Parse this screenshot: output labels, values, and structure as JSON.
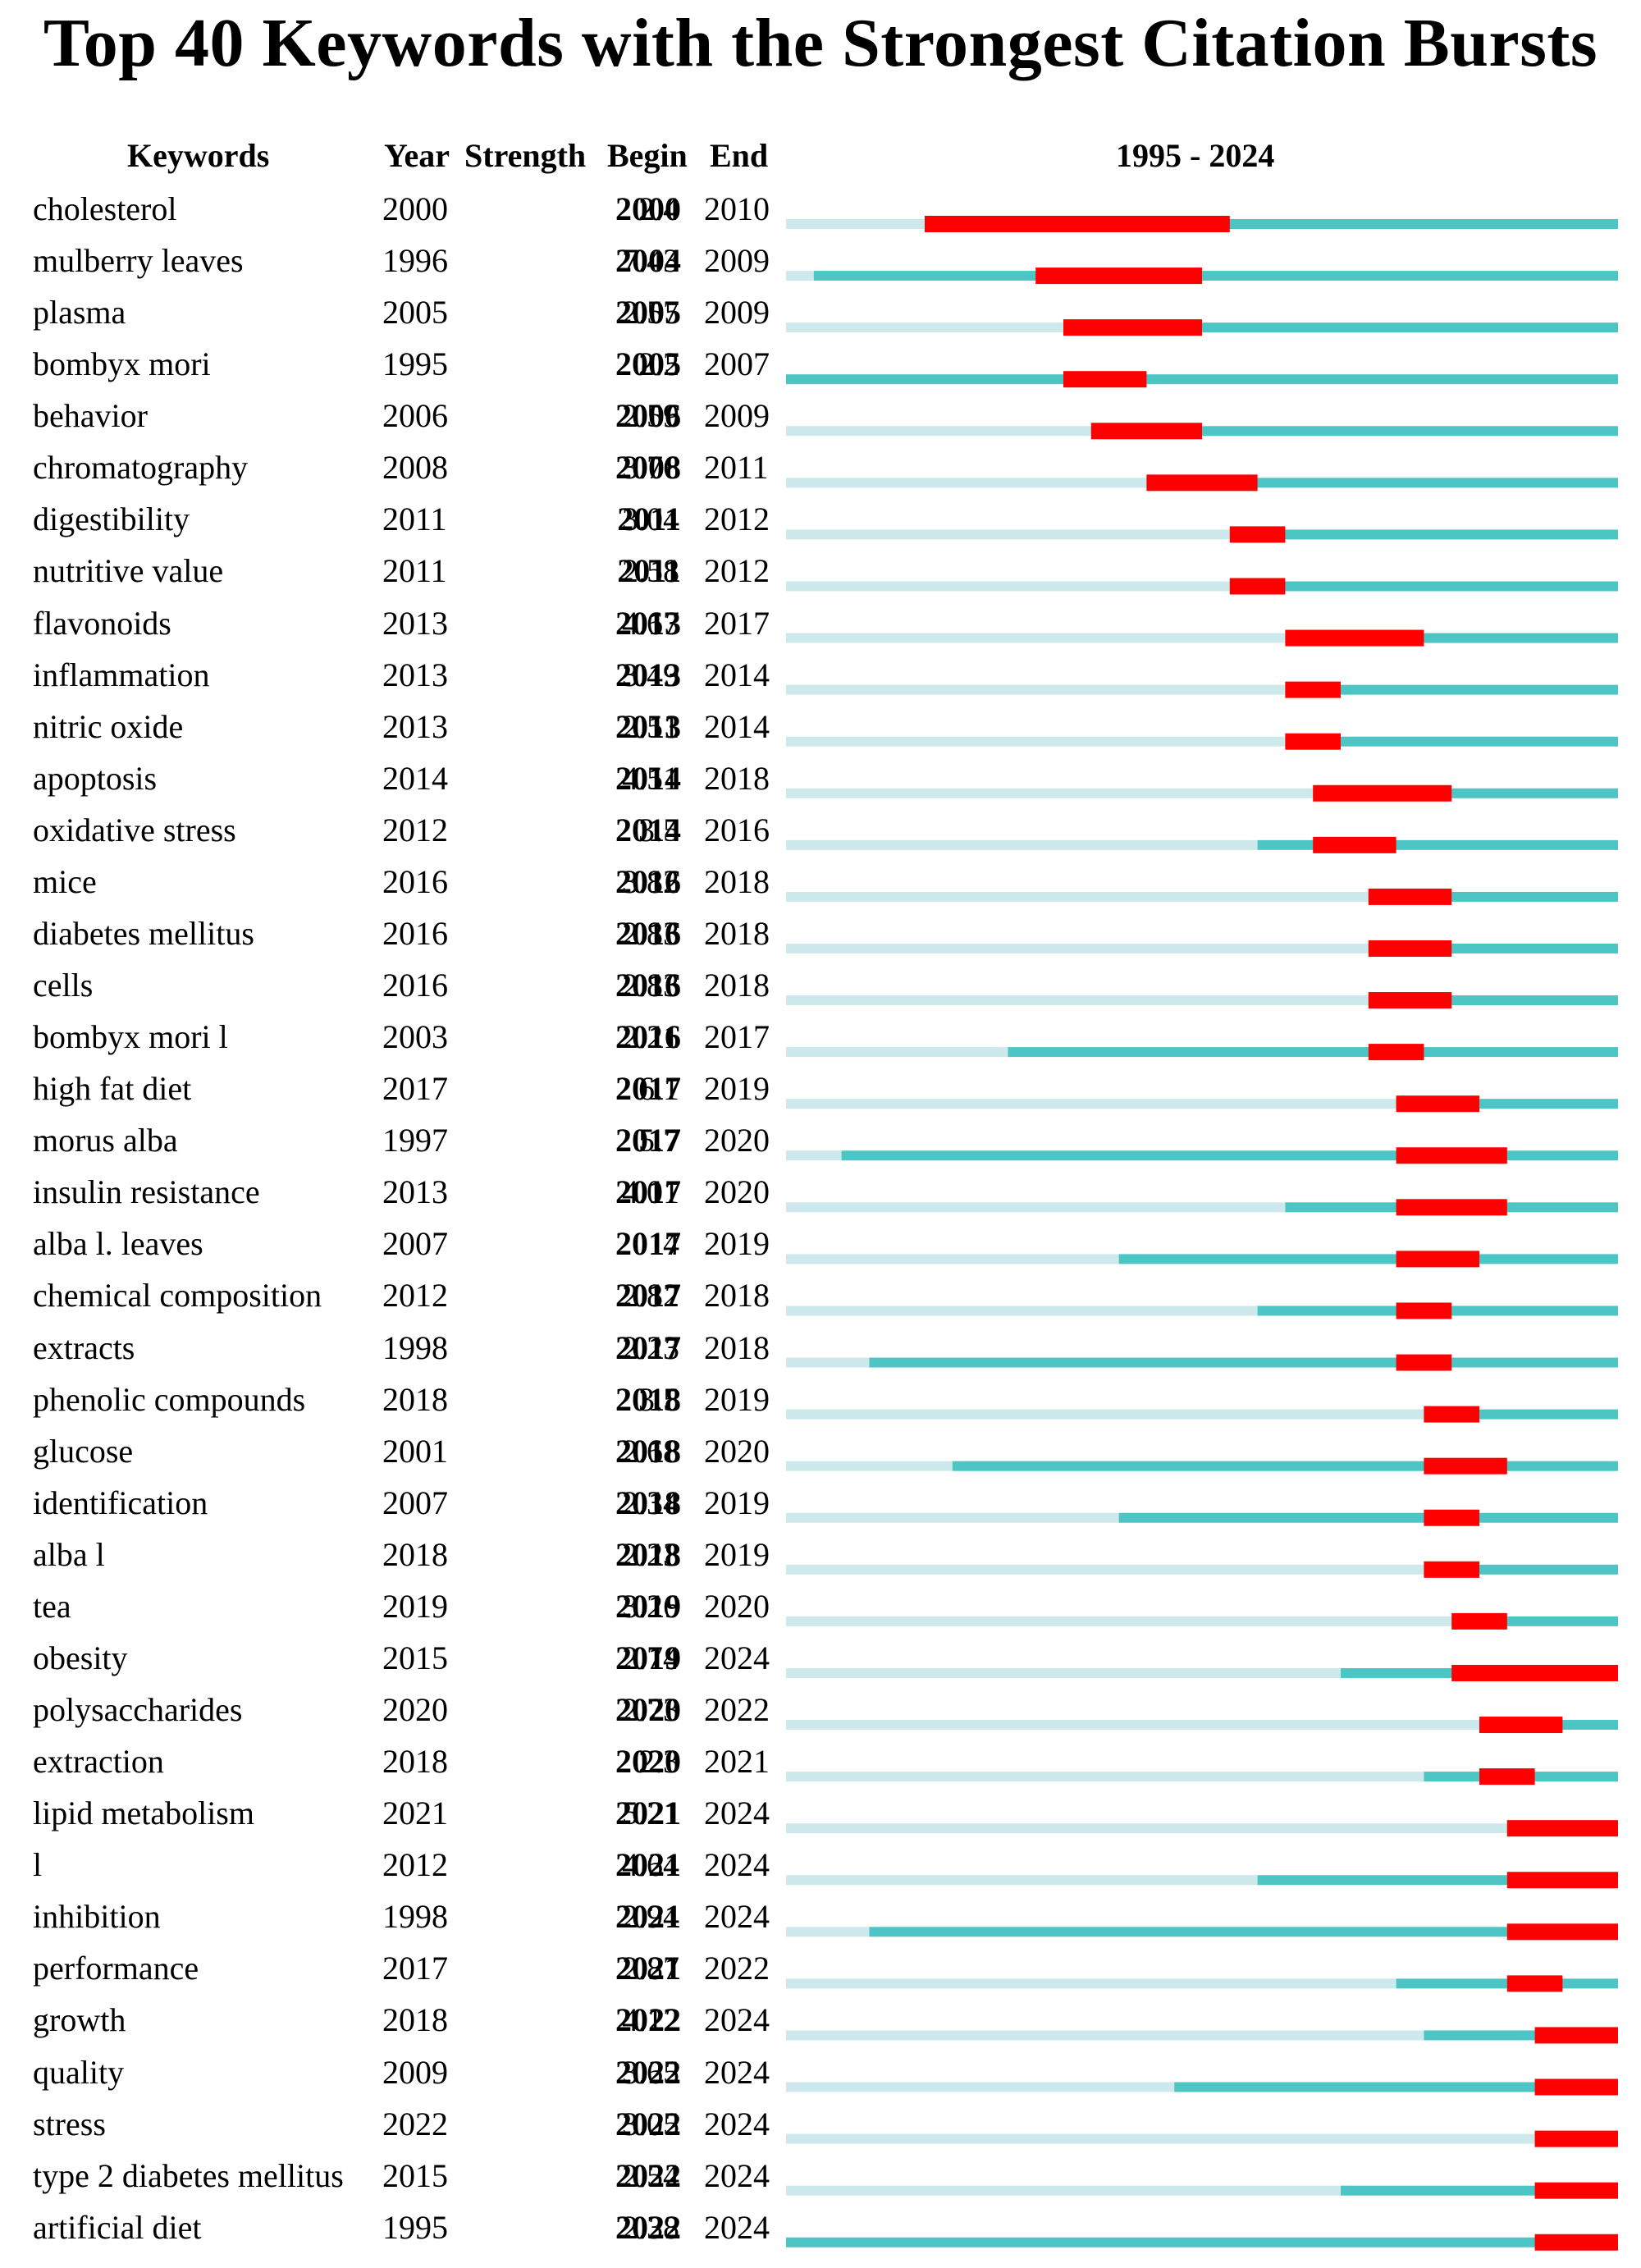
{
  "title": "Top 40 Keywords with the Strongest Citation Bursts",
  "headers": {
    "keywords": "Keywords",
    "year": "Year",
    "strength": "Strength",
    "begin": "Begin",
    "end": "End",
    "range": "1995 - 2024"
  },
  "colors": {
    "before": "#cde9eb",
    "active": "#4ec5c5",
    "burst": "#ff0000"
  },
  "chart_data": {
    "type": "table",
    "title": "Top 40 Keywords with the Strongest Citation Bursts",
    "range": [
      1995,
      2024
    ],
    "rows": [
      {
        "keyword": "cholesterol",
        "year": "2000",
        "strength": "2.4",
        "begin": "2000",
        "end": "2010"
      },
      {
        "keyword": "mulberry leaves",
        "year": "1996",
        "strength": "7.43",
        "begin": "2004",
        "end": "2009"
      },
      {
        "keyword": "plasma",
        "year": "2005",
        "strength": "2.57",
        "begin": "2005",
        "end": "2009"
      },
      {
        "keyword": "bombyx mori",
        "year": "1995",
        "strength": "2.2",
        "begin": "2005",
        "end": "2007"
      },
      {
        "keyword": "behavior",
        "year": "2006",
        "strength": "2.59",
        "begin": "2006",
        "end": "2009"
      },
      {
        "keyword": "chromatography",
        "year": "2008",
        "strength": "3.76",
        "begin": "2008",
        "end": "2011"
      },
      {
        "keyword": "digestibility",
        "year": "2011",
        "strength": "3.04",
        "begin": "2011",
        "end": "2012"
      },
      {
        "keyword": "nutritive value",
        "year": "2011",
        "strength": "2.58",
        "begin": "2011",
        "end": "2012"
      },
      {
        "keyword": "flavonoids",
        "year": "2013",
        "strength": "4.67",
        "begin": "2013",
        "end": "2017"
      },
      {
        "keyword": "inflammation",
        "year": "2013",
        "strength": "3.49",
        "begin": "2013",
        "end": "2014"
      },
      {
        "keyword": "nitric oxide",
        "year": "2013",
        "strength": "2.51",
        "begin": "2013",
        "end": "2014"
      },
      {
        "keyword": "apoptosis",
        "year": "2014",
        "strength": "4.51",
        "begin": "2014",
        "end": "2018"
      },
      {
        "keyword": "oxidative stress",
        "year": "2012",
        "strength": "3.5",
        "begin": "2014",
        "end": "2016"
      },
      {
        "keyword": "mice",
        "year": "2016",
        "strength": "3.82",
        "begin": "2016",
        "end": "2018"
      },
      {
        "keyword": "diabetes mellitus",
        "year": "2016",
        "strength": "2.83",
        "begin": "2016",
        "end": "2018"
      },
      {
        "keyword": "cells",
        "year": "2016",
        "strength": "2.83",
        "begin": "2016",
        "end": "2018"
      },
      {
        "keyword": "bombyx mori l",
        "year": "2003",
        "strength": "2.21",
        "begin": "2016",
        "end": "2017"
      },
      {
        "keyword": "high fat diet",
        "year": "2017",
        "strength": "6.1",
        "begin": "2017",
        "end": "2019"
      },
      {
        "keyword": "morus alba",
        "year": "1997",
        "strength": "5.7",
        "begin": "2017",
        "end": "2020"
      },
      {
        "keyword": "insulin resistance",
        "year": "2013",
        "strength": "4.01",
        "begin": "2017",
        "end": "2020"
      },
      {
        "keyword": "alba l. leaves",
        "year": "2007",
        "strength": "4",
        "begin": "2017",
        "end": "2019"
      },
      {
        "keyword": "chemical composition",
        "year": "2012",
        "strength": "2.82",
        "begin": "2017",
        "end": "2018"
      },
      {
        "keyword": "extracts",
        "year": "1998",
        "strength": "2.23",
        "begin": "2017",
        "end": "2018"
      },
      {
        "keyword": "phenolic compounds",
        "year": "2018",
        "strength": "3.5",
        "begin": "2018",
        "end": "2019"
      },
      {
        "keyword": "glucose",
        "year": "2001",
        "strength": "2.68",
        "begin": "2018",
        "end": "2020"
      },
      {
        "keyword": "identification",
        "year": "2007",
        "strength": "2.34",
        "begin": "2018",
        "end": "2019"
      },
      {
        "keyword": "alba l",
        "year": "2018",
        "strength": "2.23",
        "begin": "2018",
        "end": "2019"
      },
      {
        "keyword": "tea",
        "year": "2019",
        "strength": "3.26",
        "begin": "2019",
        "end": "2020"
      },
      {
        "keyword": "obesity",
        "year": "2015",
        "strength": "2.74",
        "begin": "2019",
        "end": "2024"
      },
      {
        "keyword": "polysaccharides",
        "year": "2020",
        "strength": "2.73",
        "begin": "2020",
        "end": "2022"
      },
      {
        "keyword": "extraction",
        "year": "2018",
        "strength": "2.3",
        "begin": "2020",
        "end": "2021"
      },
      {
        "keyword": "lipid metabolism",
        "year": "2021",
        "strength": "5.21",
        "begin": "2021",
        "end": "2024"
      },
      {
        "keyword": "l",
        "year": "2012",
        "strength": "4.64",
        "begin": "2021",
        "end": "2024"
      },
      {
        "keyword": "inhibition",
        "year": "1998",
        "strength": "2.94",
        "begin": "2021",
        "end": "2024"
      },
      {
        "keyword": "performance",
        "year": "2017",
        "strength": "2.87",
        "begin": "2021",
        "end": "2022"
      },
      {
        "keyword": "growth",
        "year": "2018",
        "strength": "4.12",
        "begin": "2022",
        "end": "2024"
      },
      {
        "keyword": "quality",
        "year": "2009",
        "strength": "3.65",
        "begin": "2022",
        "end": "2024"
      },
      {
        "keyword": "stress",
        "year": "2022",
        "strength": "3.05",
        "begin": "2022",
        "end": "2024"
      },
      {
        "keyword": "type 2 diabetes mellitus",
        "year": "2015",
        "strength": "2.54",
        "begin": "2022",
        "end": "2024"
      },
      {
        "keyword": "artificial diet",
        "year": "1995",
        "strength": "2.38",
        "begin": "2022",
        "end": "2024"
      }
    ]
  }
}
